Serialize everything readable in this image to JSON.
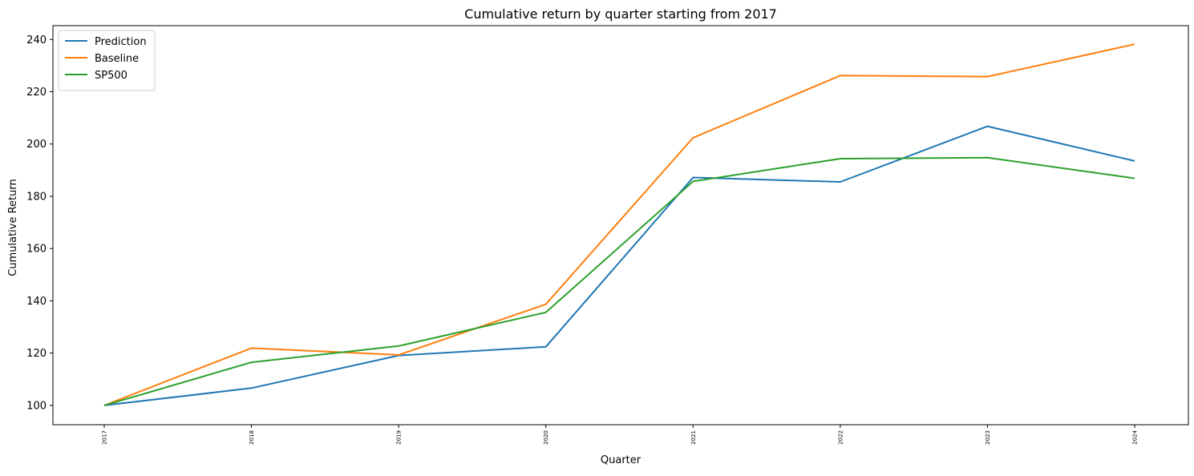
{
  "chart_data": {
    "type": "line",
    "title": "Cumulative return by quarter starting from 2017",
    "xlabel": "Quarter",
    "ylabel": "Cumulative Return",
    "categories": [
      "2017",
      "2018",
      "2019",
      "2020",
      "2021",
      "2022",
      "2023",
      "2024"
    ],
    "ylim": [
      92.6,
      245.3
    ],
    "yticks": [
      100,
      120,
      140,
      160,
      180,
      200,
      220,
      240
    ],
    "grid": false,
    "legend_position": "top-left",
    "series": [
      {
        "name": "Prediction",
        "color": "#1f77b4",
        "values": [
          100.0,
          106.6,
          119.1,
          122.4,
          187.2,
          185.5,
          206.8,
          193.5
        ]
      },
      {
        "name": "Baseline",
        "color": "#ff7f0e",
        "values": [
          100.0,
          121.9,
          119.3,
          138.7,
          202.4,
          226.2,
          225.8,
          238.2
        ]
      },
      {
        "name": "SP500",
        "color": "#2ca02c",
        "values": [
          100.0,
          116.5,
          122.7,
          135.6,
          185.7,
          194.4,
          194.8,
          186.9
        ]
      }
    ]
  }
}
